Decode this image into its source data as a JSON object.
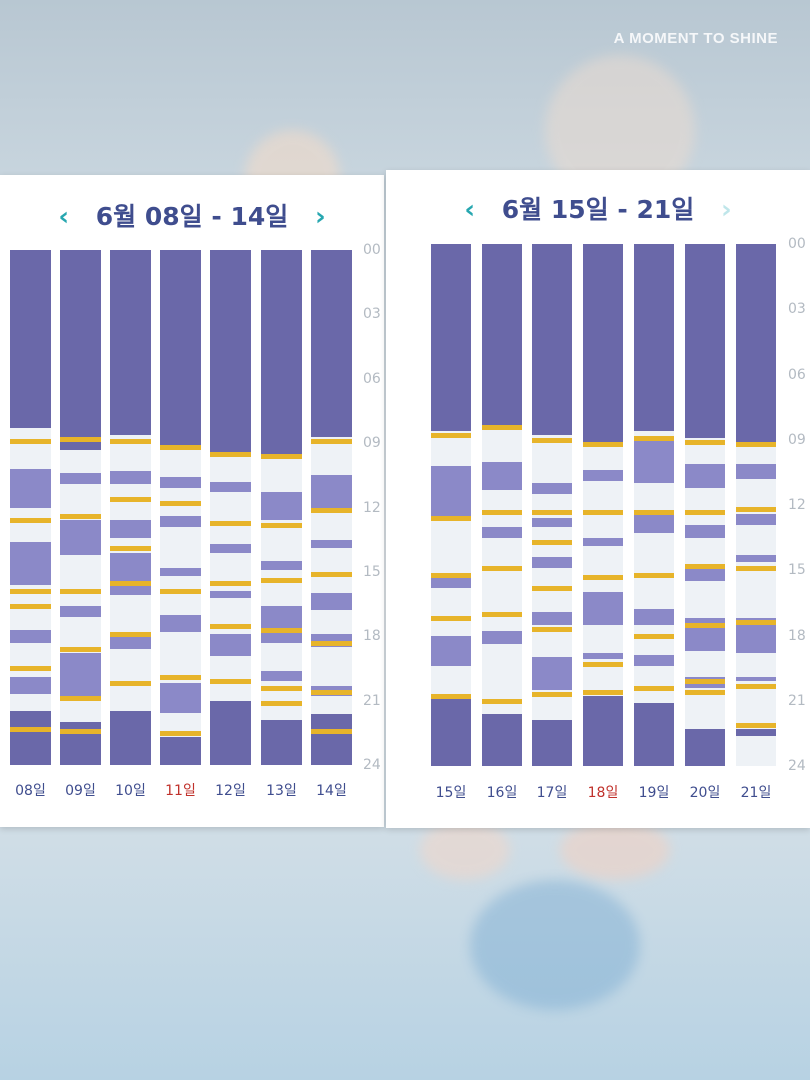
{
  "watermark": "A MOMENT TO SHINE",
  "colors": {
    "sleep": "#6a68a9",
    "light": "#8b89c8",
    "marker": "#e7b42a",
    "empty": "#eef2f6",
    "accent": "#27a7b0",
    "title": "#3f4d8e",
    "weekend": "#c0312b"
  },
  "icons": {
    "prev": "chevron-left-icon",
    "next": "chevron-right-icon"
  },
  "hour_ticks": [
    "00",
    "03",
    "06",
    "09",
    "12",
    "15",
    "18",
    "21",
    "24"
  ],
  "weeks": [
    {
      "title": "6월 08일 - 14일",
      "prev_label": "‹",
      "next_label": "›",
      "next_disabled": false,
      "days": [
        {
          "label": "08일",
          "highlight": false,
          "blocks": [
            [
              0,
              8.3,
              "d"
            ],
            [
              10.2,
              12,
              "l"
            ],
            [
              13.6,
              15.6,
              "l"
            ],
            [
              17.7,
              18.3,
              "l"
            ],
            [
              19.9,
              20.7,
              "l"
            ],
            [
              21.5,
              24,
              "d"
            ]
          ],
          "marks": [
            8.9,
            12.6,
            15.9,
            16.6,
            19.5,
            22.3
          ]
        },
        {
          "label": "09일",
          "highlight": false,
          "blocks": [
            [
              0,
              8.6,
              "d"
            ],
            [
              8.6,
              9.3,
              "d"
            ],
            [
              10.4,
              10.9,
              "l"
            ],
            [
              12.6,
              14.2,
              "l"
            ],
            [
              16.6,
              17.1,
              "l"
            ],
            [
              18.8,
              21.0,
              "l"
            ],
            [
              22.0,
              24,
              "d"
            ]
          ],
          "marks": [
            8.8,
            12.4,
            15.9,
            18.6,
            20.9,
            22.4
          ]
        },
        {
          "label": "10일",
          "highlight": false,
          "blocks": [
            [
              0,
              8.6,
              "d"
            ],
            [
              10.3,
              10.9,
              "l"
            ],
            [
              12.6,
              13.4,
              "l"
            ],
            [
              14.1,
              16.1,
              "l"
            ],
            [
              18.0,
              18.6,
              "l"
            ],
            [
              21.5,
              24,
              "d"
            ]
          ],
          "marks": [
            8.9,
            11.6,
            13.9,
            15.5,
            17.9,
            20.2
          ]
        },
        {
          "label": "11일",
          "highlight": true,
          "blocks": [
            [
              0,
              9.1,
              "d"
            ],
            [
              10.6,
              11.1,
              "l"
            ],
            [
              12.4,
              12.9,
              "l"
            ],
            [
              14.8,
              15.2,
              "l"
            ],
            [
              17.0,
              17.8,
              "l"
            ],
            [
              20.2,
              21.6,
              "l"
            ],
            [
              22.7,
              24,
              "d"
            ]
          ],
          "marks": [
            9.2,
            11.8,
            15.9,
            19.9,
            22.5
          ]
        },
        {
          "label": "12일",
          "highlight": false,
          "blocks": [
            [
              0,
              9.4,
              "d"
            ],
            [
              10.8,
              11.3,
              "l"
            ],
            [
              13.7,
              14.1,
              "l"
            ],
            [
              15.9,
              16.2,
              "l"
            ],
            [
              17.9,
              18.9,
              "l"
            ],
            [
              21.0,
              24,
              "d"
            ]
          ],
          "marks": [
            9.5,
            12.7,
            15.5,
            17.5,
            20.1
          ]
        },
        {
          "label": "13일",
          "highlight": false,
          "blocks": [
            [
              0,
              9.5,
              "d"
            ],
            [
              11.3,
              12.6,
              "l"
            ],
            [
              14.5,
              14.9,
              "l"
            ],
            [
              16.6,
              18.3,
              "l"
            ],
            [
              19.6,
              20.1,
              "l"
            ],
            [
              21.9,
              24,
              "d"
            ]
          ],
          "marks": [
            9.6,
            12.8,
            15.4,
            17.7,
            20.4,
            21.1
          ]
        },
        {
          "label": "14일",
          "highlight": false,
          "blocks": [
            [
              0,
              8.7,
              "d"
            ],
            [
              10.5,
              12.0,
              "l"
            ],
            [
              13.5,
              13.9,
              "l"
            ],
            [
              16.0,
              16.8,
              "l"
            ],
            [
              17.9,
              18.5,
              "l"
            ],
            [
              20.3,
              20.8,
              "l"
            ],
            [
              21.6,
              24,
              "d"
            ]
          ],
          "marks": [
            8.9,
            12.1,
            15.1,
            18.3,
            20.6,
            22.4
          ]
        }
      ]
    },
    {
      "title": "6월 15일 - 21일",
      "prev_label": "‹",
      "next_label": "›",
      "next_disabled": true,
      "days": [
        {
          "label": "15일",
          "highlight": false,
          "blocks": [
            [
              0,
              8.6,
              "d"
            ],
            [
              10.2,
              12.5,
              "l"
            ],
            [
              15.2,
              15.8,
              "l"
            ],
            [
              18.0,
              19.4,
              "l"
            ],
            [
              20.9,
              24,
              "d"
            ]
          ],
          "marks": [
            8.8,
            12.6,
            15.2,
            17.2,
            20.8
          ]
        },
        {
          "label": "16일",
          "highlight": false,
          "blocks": [
            [
              0,
              8.3,
              "d"
            ],
            [
              10.0,
              11.3,
              "l"
            ],
            [
              13.0,
              13.5,
              "l"
            ],
            [
              17.8,
              18.4,
              "l"
            ],
            [
              21.6,
              24,
              "d"
            ]
          ],
          "marks": [
            8.4,
            12.3,
            14.9,
            17.0,
            21.0
          ]
        },
        {
          "label": "17일",
          "highlight": false,
          "blocks": [
            [
              0,
              8.8,
              "d"
            ],
            [
              11.0,
              11.5,
              "l"
            ],
            [
              12.6,
              13.0,
              "l"
            ],
            [
              14.4,
              14.9,
              "l"
            ],
            [
              16.9,
              17.5,
              "l"
            ],
            [
              19.0,
              20.5,
              "l"
            ],
            [
              21.9,
              24,
              "d"
            ]
          ],
          "marks": [
            9.0,
            12.3,
            13.7,
            15.8,
            17.7,
            20.7
          ]
        },
        {
          "label": "18일",
          "highlight": true,
          "blocks": [
            [
              0,
              9.1,
              "d"
            ],
            [
              10.4,
              10.9,
              "l"
            ],
            [
              13.5,
              13.9,
              "l"
            ],
            [
              16.0,
              17.5,
              "l"
            ],
            [
              18.8,
              19.1,
              "l"
            ],
            [
              20.8,
              24,
              "d"
            ]
          ],
          "marks": [
            9.2,
            12.3,
            15.3,
            19.3,
            20.6
          ]
        },
        {
          "label": "19일",
          "highlight": false,
          "blocks": [
            [
              0,
              8.6,
              "d"
            ],
            [
              9.0,
              11.0,
              "l"
            ],
            [
              12.4,
              13.3,
              "l"
            ],
            [
              16.8,
              17.5,
              "l"
            ],
            [
              18.9,
              19.4,
              "l"
            ],
            [
              21.1,
              24,
              "d"
            ]
          ],
          "marks": [
            8.9,
            12.3,
            15.2,
            18.0,
            20.4
          ]
        },
        {
          "label": "20일",
          "highlight": false,
          "blocks": [
            [
              0,
              8.9,
              "d"
            ],
            [
              10.1,
              11.2,
              "l"
            ],
            [
              12.9,
              13.5,
              "l"
            ],
            [
              14.8,
              15.5,
              "l"
            ],
            [
              17.2,
              18.7,
              "l"
            ],
            [
              19.9,
              20.4,
              "l"
            ],
            [
              22.3,
              24,
              "d"
            ]
          ],
          "marks": [
            9.1,
            12.3,
            14.8,
            17.5,
            20.1,
            20.6
          ]
        },
        {
          "label": "21일",
          "highlight": false,
          "blocks": [
            [
              0,
              9.1,
              "d"
            ],
            [
              10.1,
              10.8,
              "l"
            ],
            [
              12.4,
              12.9,
              "l"
            ],
            [
              14.3,
              14.6,
              "l"
            ],
            [
              17.2,
              18.8,
              "l"
            ],
            [
              19.9,
              20.1,
              "l"
            ],
            [
              22.3,
              22.6,
              "d"
            ]
          ],
          "marks": [
            9.2,
            12.2,
            14.9,
            17.4,
            20.3,
            22.1
          ]
        }
      ]
    }
  ]
}
